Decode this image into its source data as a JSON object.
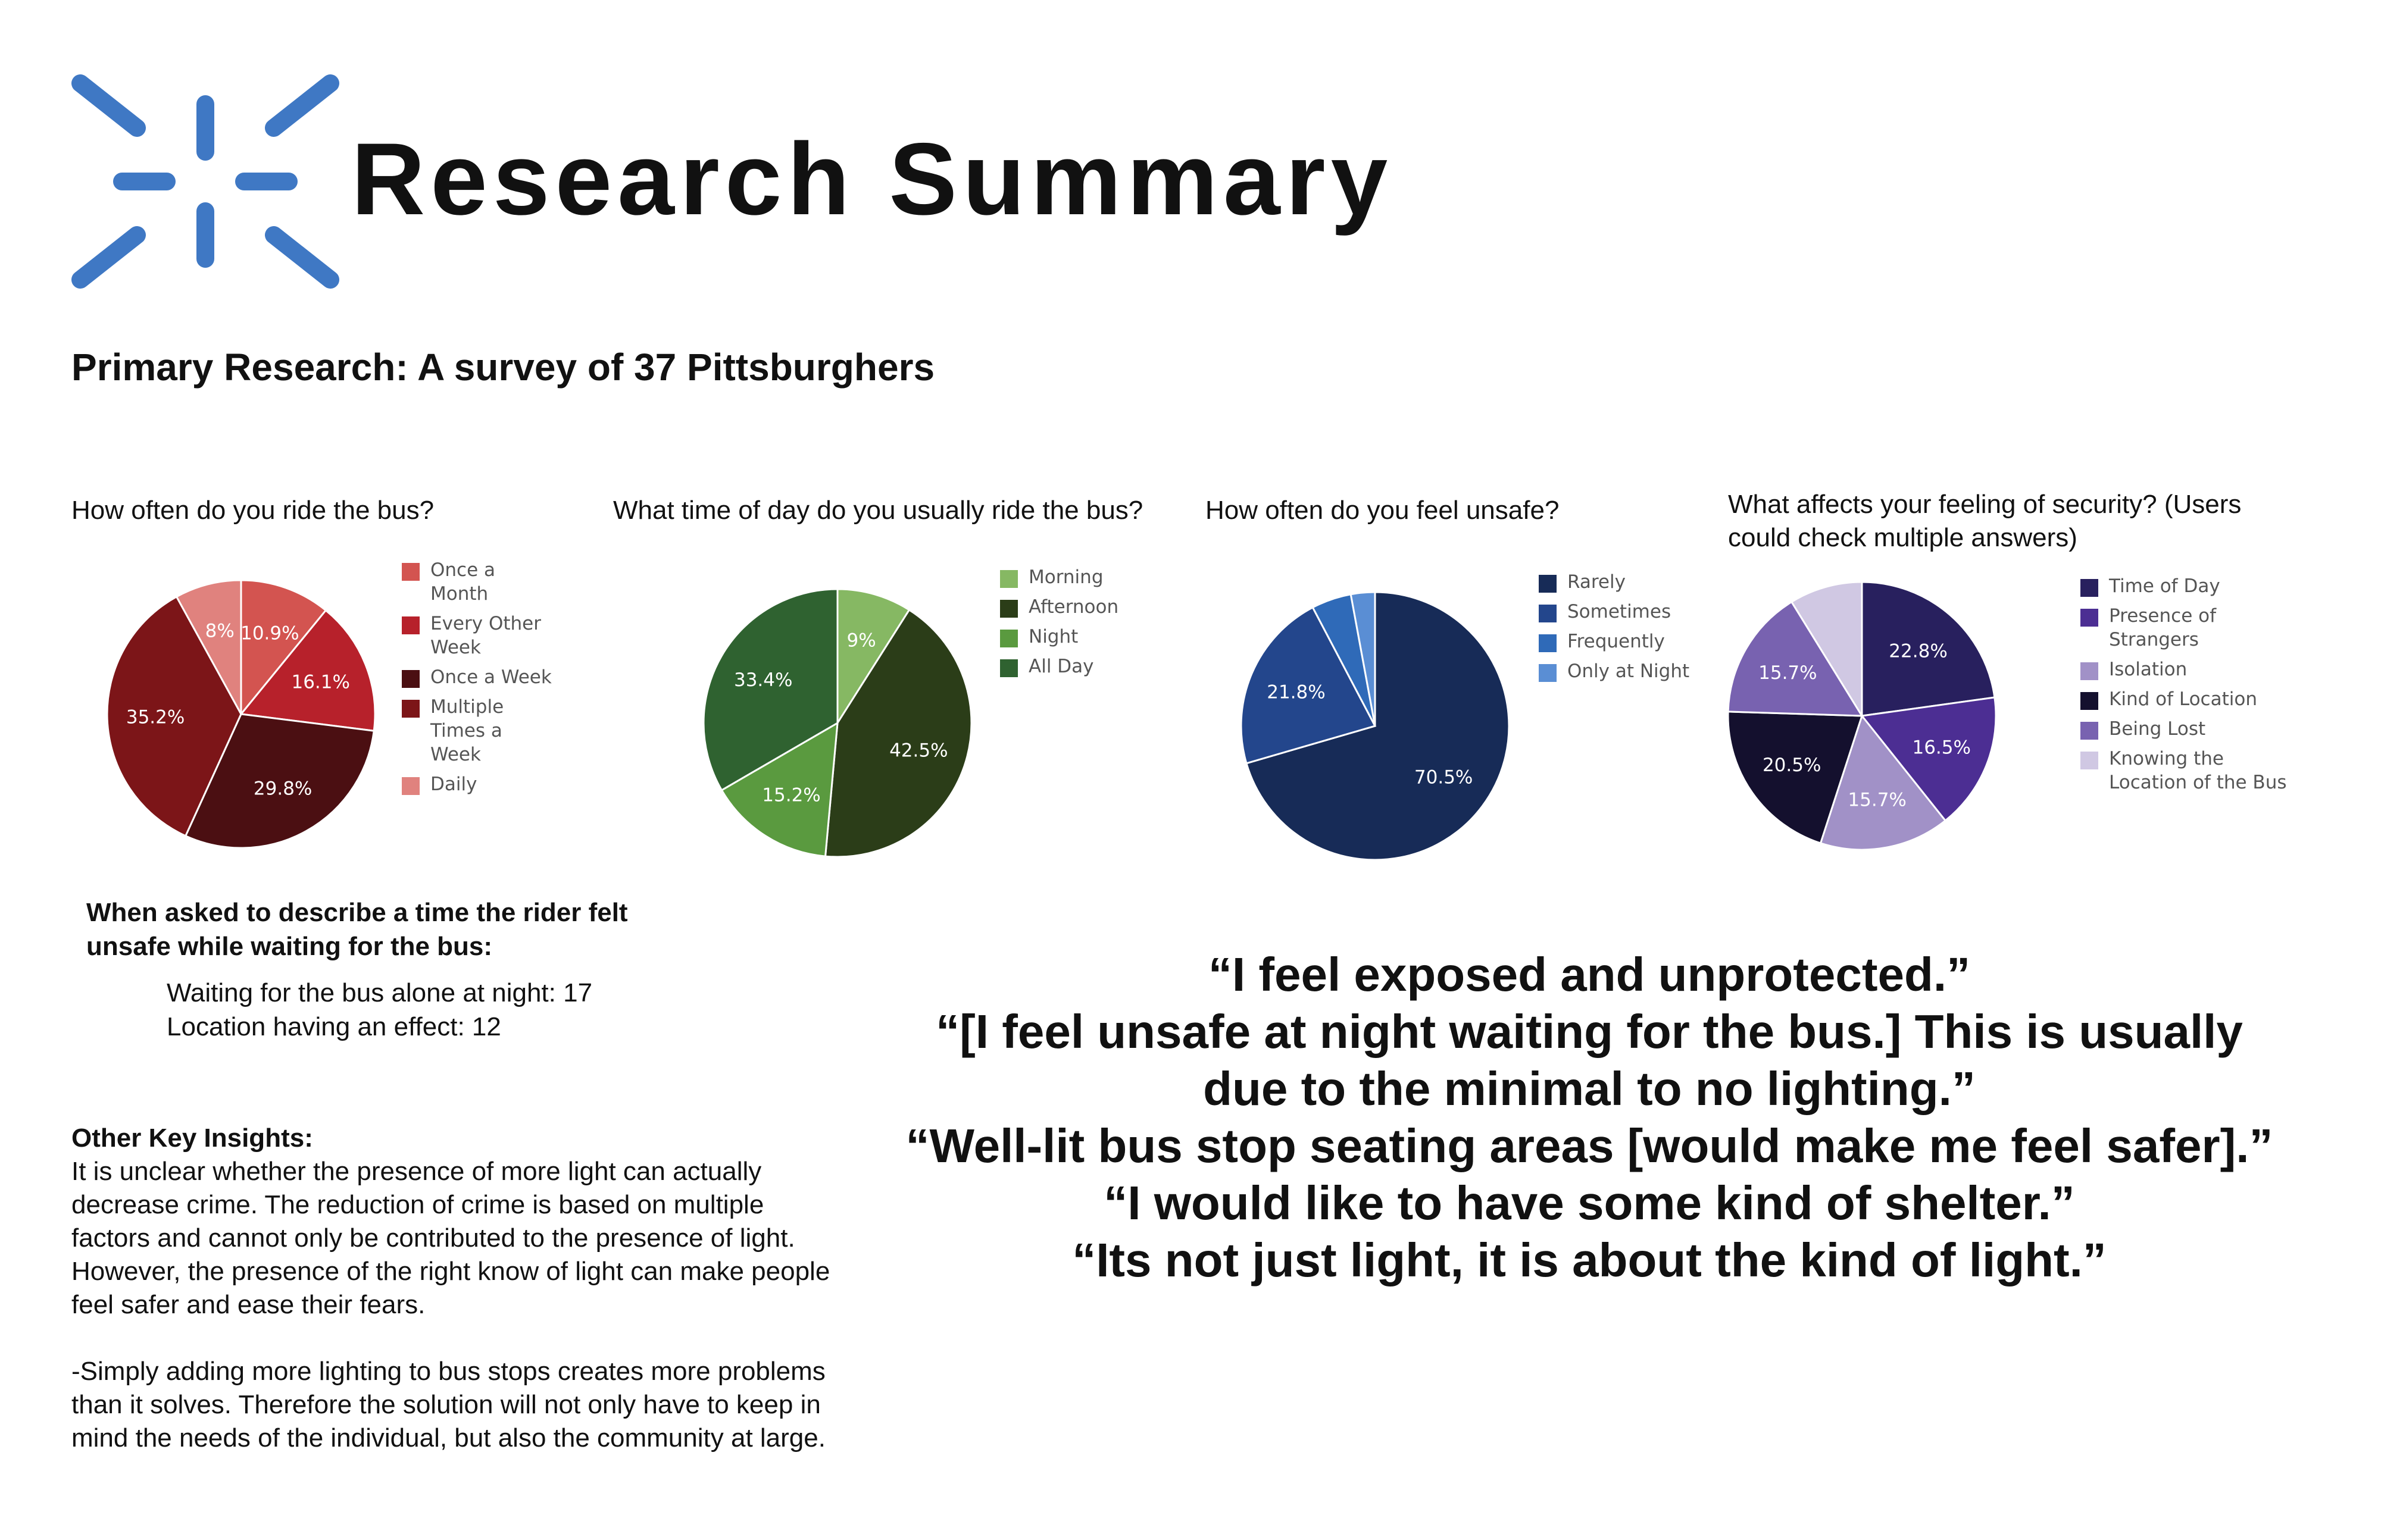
{
  "header": {
    "title": "Research Summary",
    "subtitle": "Primary Research: A survey of 37 Pittsburghers"
  },
  "colors": {
    "logo": "#3f78c4",
    "label_text": "#ffffff"
  },
  "chart_data": [
    {
      "type": "pie",
      "title": "How often do you ride the bus?",
      "series": [
        {
          "label": "Once a Month",
          "value": 10.9,
          "display": "10.9%",
          "color": "#d35450"
        },
        {
          "label": "Every Other Week",
          "value": 16.1,
          "display": "16.1%",
          "color": "#b7212b"
        },
        {
          "label": "Once a Week",
          "value": 29.8,
          "display": "29.8%",
          "color": "#4b0f12"
        },
        {
          "label": "Multiple Times a Week",
          "value": 35.2,
          "display": "35.2%",
          "color": "#7c1518"
        },
        {
          "label": "Daily",
          "value": 8,
          "display": "8%",
          "color": "#e0827e"
        }
      ],
      "legend_position": "right"
    },
    {
      "type": "pie",
      "title": "What time of day do you usually ride the bus?",
      "series": [
        {
          "label": "Morning",
          "value": 9,
          "display": "9%",
          "color": "#86b863"
        },
        {
          "label": "Afternoon",
          "value": 42.5,
          "display": "42.5%",
          "color": "#2b3d18"
        },
        {
          "label": "Night",
          "value": 15.2,
          "display": "15.2%",
          "color": "#5a9a3f"
        },
        {
          "label": "All Day",
          "value": 33.4,
          "display": "33.4%",
          "color": "#2f6230"
        }
      ],
      "legend_position": "right"
    },
    {
      "type": "pie",
      "title": "How often do you feel unsafe?",
      "series": [
        {
          "label": "Rarely",
          "value": 70.5,
          "display": "70.5%",
          "color": "#172b57"
        },
        {
          "label": "Sometimes",
          "value": 21.8,
          "display": "21.8%",
          "color": "#23468c"
        },
        {
          "label": "Frequently",
          "value": 4.8,
          "display": "",
          "color": "#2f6ab8"
        },
        {
          "label": "Only at Night",
          "value": 2.9,
          "display": "",
          "color": "#5a8ed4"
        }
      ],
      "legend_position": "right"
    },
    {
      "type": "pie",
      "title": "What affects your feeling of security? (Users could check multiple answers)",
      "series": [
        {
          "label": "Time of Day",
          "value": 22.8,
          "display": "22.8%",
          "color": "#28205e"
        },
        {
          "label": "Presence of Strangers",
          "value": 16.5,
          "display": "16.5%",
          "color": "#4c2e93"
        },
        {
          "label": "Isolation",
          "value": 15.7,
          "display": "15.7%",
          "color": "#a191c7"
        },
        {
          "label": "Kind of Location",
          "value": 20.5,
          "display": "20.5%",
          "color": "#14102e"
        },
        {
          "label": "Being Lost",
          "value": 15.7,
          "display": "15.7%",
          "color": "#7862b0"
        },
        {
          "label": "Knowing the Location of the Bus",
          "value": 8.8,
          "display": "",
          "color": "#d0c8e3"
        }
      ],
      "legend_position": "right"
    }
  ],
  "unsafe_section": {
    "title": "When asked to describe a time the rider felt unsafe while waiting for the bus:",
    "items": [
      "Waiting for the bus alone at night: 17",
      "Location having an effect: 12"
    ]
  },
  "insights": {
    "heading": "Other Key Insights:",
    "paragraphs": [
      "It is unclear whether the presence of more light can actually decrease crime. The reduction of crime is based on multiple factors and cannot only be contributed to the presence of light. However, the presence of the right know of light can make people feel safer and ease their fears.",
      "-Simply adding more lighting to bus stops creates more problems than it solves. Therefore the solution will not only have to keep in mind the needs of the individual, but also the community at large."
    ]
  },
  "quotes": [
    "“I feel exposed and unprotected.”",
    "“[I feel unsafe at night waiting for the bus.] This is usually due to the minimal to no lighting.”",
    "“Well-lit bus stop seating areas [would make me feel safer].”",
    "“I would like to have some kind of shelter.”",
    "“Its not just light, it is about the kind of light.”"
  ]
}
